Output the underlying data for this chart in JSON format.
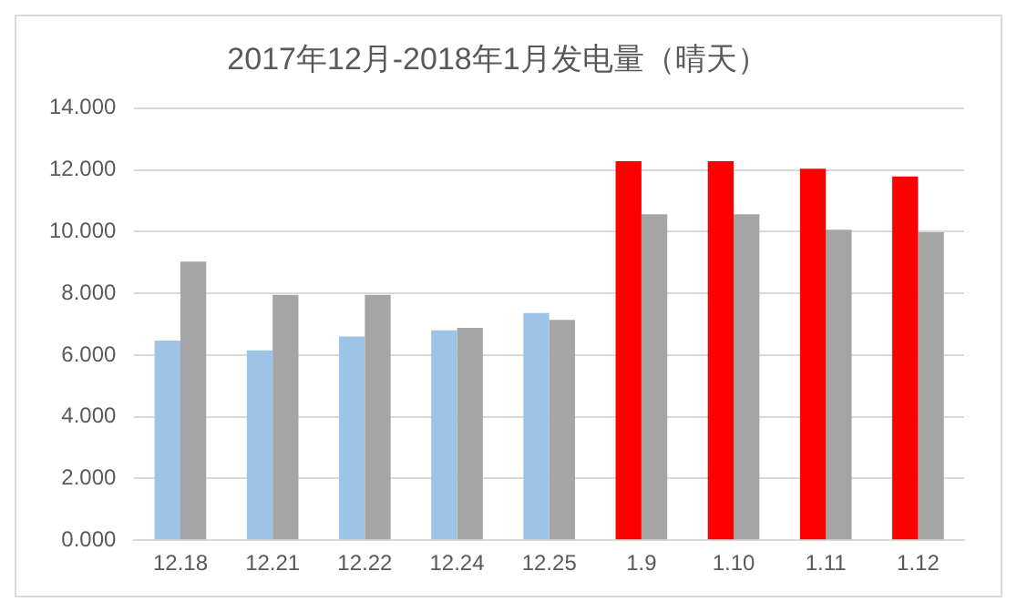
{
  "chart_data": {
    "type": "bar",
    "title": "2017年12月-2018年1月发电量（晴天）",
    "categories": [
      "12.18",
      "12.21",
      "12.22",
      "12.24",
      "12.25",
      "1.9",
      "1.10",
      "1.11",
      "1.12"
    ],
    "series": [
      {
        "colors": [
          "#9dc3e6",
          "#9dc3e6",
          "#9dc3e6",
          "#9dc3e6",
          "#9dc3e6",
          "#ff0000",
          "#ff0000",
          "#ff0000",
          "#ff0000"
        ],
        "values": [
          6.47,
          6.15,
          6.6,
          6.8,
          7.36,
          12.28,
          12.28,
          12.04,
          11.79
        ]
      },
      {
        "color": "#a5a5a5",
        "values": [
          9.03,
          7.95,
          7.95,
          6.88,
          7.14,
          10.56,
          10.56,
          10.06,
          9.98
        ]
      }
    ],
    "ylim": [
      0,
      14
    ],
    "yticks": [
      {
        "value": 0,
        "label": "0.000"
      },
      {
        "value": 2,
        "label": "2.000"
      },
      {
        "value": 4,
        "label": "4.000"
      },
      {
        "value": 6,
        "label": "6.000"
      },
      {
        "value": 8,
        "label": "8.000"
      },
      {
        "value": 10,
        "label": "10.000"
      },
      {
        "value": 12,
        "label": "12.000"
      },
      {
        "value": 14,
        "label": "14.000"
      }
    ],
    "grid": "y",
    "legend": false
  }
}
